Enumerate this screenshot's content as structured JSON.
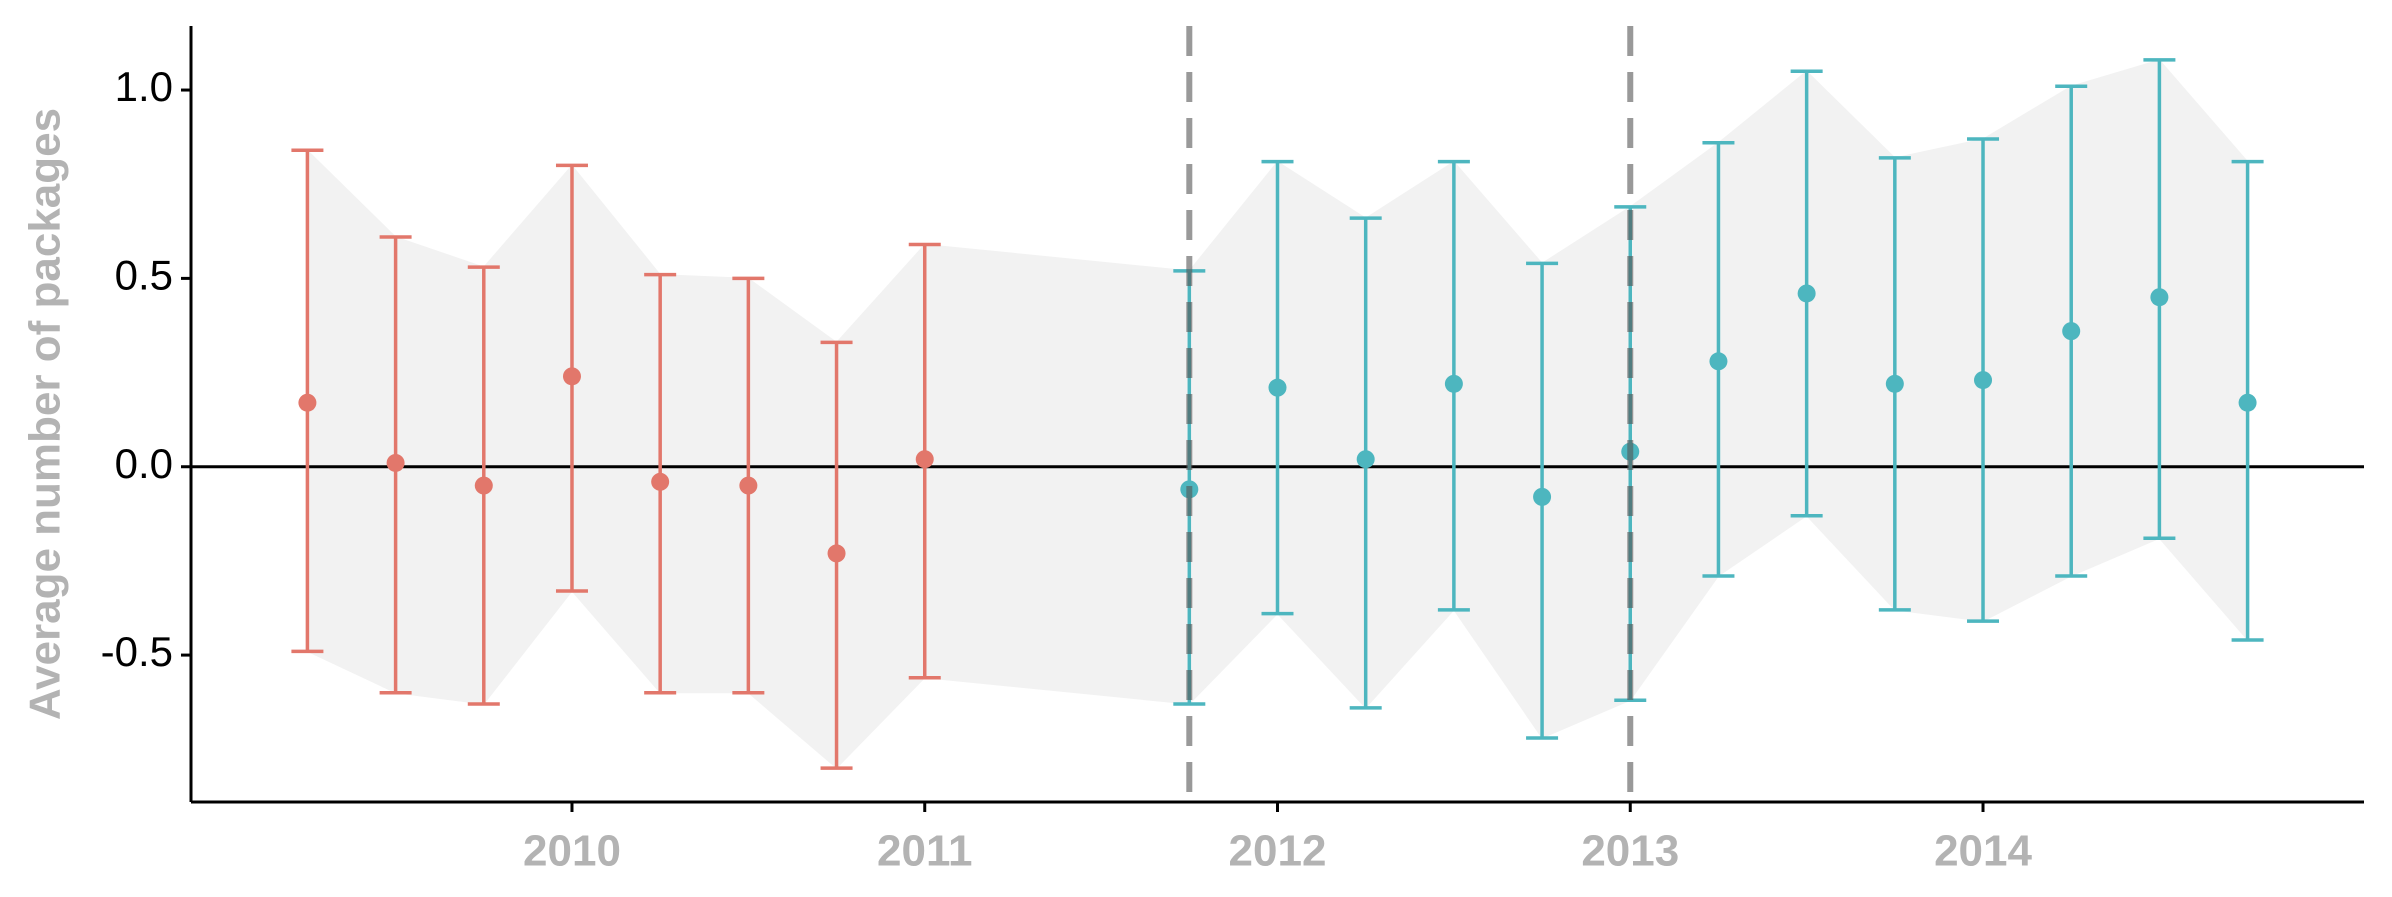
{
  "chart_data": {
    "type": "errorbar",
    "y_label": "Average number of packages",
    "xlim": [
      2008.92,
      2015.08
    ],
    "xticks": [
      2010,
      2011,
      2012,
      2013,
      2014
    ],
    "ylim": [
      -0.89,
      1.17
    ],
    "yticks": [
      {
        "value": 1,
        "label": "1.0"
      },
      0.5,
      {
        "value": 0,
        "label": "0.0"
      },
      -0.5
    ],
    "hline": 0,
    "vlines": [
      2011.75,
      2013
    ],
    "ribbon_color": "#f2f2f2",
    "series": [
      {
        "color": "#e2776b",
        "x": [
          2009.25,
          2009.5,
          2009.75,
          2010,
          2010.25,
          2010.5,
          2010.75,
          2011
        ],
        "values": [
          0.17,
          0.01,
          -0.05,
          0.24,
          -0.04,
          -0.05,
          -0.23,
          0.02
        ],
        "upper": [
          0.84,
          0.61,
          0.53,
          0.8,
          0.51,
          0.5,
          0.33,
          0.59
        ],
        "lower": [
          -0.49,
          -0.6,
          -0.63,
          -0.33,
          -0.6,
          -0.6,
          -0.8,
          -0.56
        ]
      },
      {
        "color": "#4db6bf",
        "x": [
          2011.75,
          2012,
          2012.25,
          2012.5,
          2012.75,
          2013,
          2013.25,
          2013.5,
          2013.75,
          2014,
          2014.25,
          2014.5,
          2014.75
        ],
        "values": [
          -0.06,
          0.21,
          0.02,
          0.22,
          -0.08,
          0.04,
          0.28,
          0.46,
          0.22,
          0.23,
          0.36,
          0.45,
          0.17
        ],
        "upper": [
          0.52,
          0.81,
          0.66,
          0.81,
          0.54,
          0.69,
          0.86,
          1.05,
          0.82,
          0.87,
          1.01,
          1.08,
          0.81
        ],
        "lower": [
          -0.63,
          -0.39,
          -0.64,
          -0.38,
          -0.72,
          -0.62,
          -0.29,
          -0.13,
          -0.38,
          -0.41,
          -0.29,
          -0.19,
          -0.46
        ]
      }
    ]
  }
}
